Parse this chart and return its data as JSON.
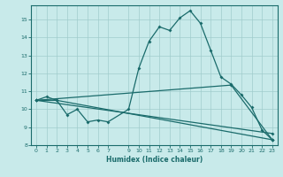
{
  "xlabel": "Humidex (Indice chaleur)",
  "xlim": [
    -0.5,
    23.5
  ],
  "ylim": [
    8,
    15.8
  ],
  "yticks": [
    8,
    9,
    10,
    11,
    12,
    13,
    14,
    15
  ],
  "xticks": [
    0,
    1,
    2,
    3,
    4,
    5,
    6,
    7,
    9,
    10,
    11,
    12,
    13,
    14,
    15,
    16,
    17,
    18,
    19,
    20,
    21,
    22,
    23
  ],
  "bg_color": "#c8eaea",
  "line_color": "#1a6b6b",
  "grid_color": "#a0cccc",
  "line1_x": [
    0,
    1,
    2,
    3,
    4,
    5,
    6,
    7,
    9,
    10,
    11,
    12,
    13,
    14,
    15,
    16,
    17,
    18,
    19,
    20,
    21,
    22,
    23
  ],
  "line1_y": [
    10.5,
    10.7,
    10.5,
    9.7,
    10.0,
    9.3,
    9.4,
    9.3,
    10.0,
    12.3,
    13.8,
    14.6,
    14.4,
    15.1,
    15.5,
    14.8,
    13.3,
    11.8,
    11.4,
    10.8,
    10.1,
    8.85,
    8.3
  ],
  "line2_x": [
    0,
    2,
    23
  ],
  "line2_y": [
    10.5,
    10.5,
    8.3
  ],
  "line3_x": [
    0,
    19,
    23
  ],
  "line3_y": [
    10.5,
    11.35,
    8.3
  ],
  "line4_x": [
    0,
    23
  ],
  "line4_y": [
    10.5,
    8.65
  ]
}
